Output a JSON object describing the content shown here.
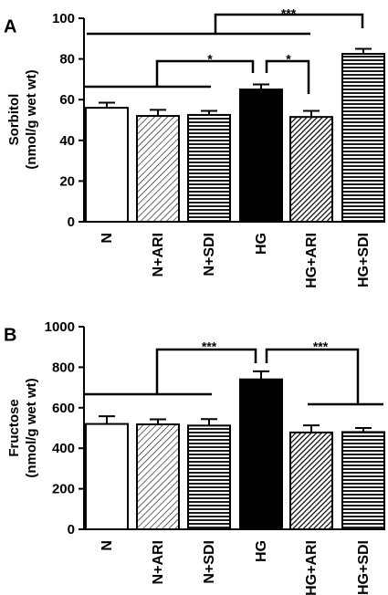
{
  "chart_data": [
    {
      "type": "bar",
      "panel": "A",
      "ylabel_line1": "Sorbitol",
      "ylabel_line2": "(nmol/g wet wt)",
      "ylim": [
        0,
        100
      ],
      "yticks": [
        "0",
        "20",
        "40",
        "60",
        "80",
        "100"
      ],
      "categories": [
        "N",
        "N+ARI",
        "N+SDI",
        "HG",
        "HG+ARI",
        "HG+SDI"
      ],
      "values": [
        56,
        52,
        52.5,
        65,
        51.5,
        82.5
      ],
      "errors": [
        2.5,
        3,
        2,
        2.5,
        3,
        2.5
      ],
      "fills": [
        "white",
        "diag-light",
        "horiz",
        "black",
        "diag-dark",
        "horiz"
      ],
      "significance": [
        {
          "label": "*",
          "level": "lower"
        },
        {
          "label": "*",
          "level": "lower"
        },
        {
          "label": "***",
          "level": "top"
        }
      ]
    },
    {
      "type": "bar",
      "panel": "B",
      "ylabel_line1": "Fructose",
      "ylabel_line2": "(nmol/g wet wt)",
      "ylim": [
        0,
        1000
      ],
      "yticks": [
        "0",
        "200",
        "400",
        "600",
        "800",
        "1000"
      ],
      "categories": [
        "N",
        "N+ARI",
        "N+SDI",
        "HG",
        "HG+ARI",
        "HG+SDI"
      ],
      "values": [
        520,
        518,
        512,
        740,
        478,
        480
      ],
      "errors": [
        38,
        25,
        32,
        40,
        35,
        20
      ],
      "fills": [
        "white",
        "diag-light",
        "horiz",
        "black",
        "diag-dark",
        "horiz"
      ],
      "significance": [
        {
          "label": "***",
          "level": "lower"
        },
        {
          "label": "***",
          "level": "lower"
        }
      ]
    }
  ]
}
